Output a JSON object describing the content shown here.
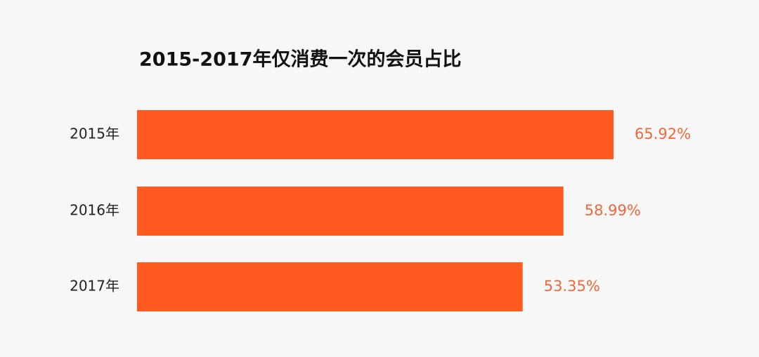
{
  "chart_data": {
    "type": "bar",
    "orientation": "horizontal",
    "title": "2015-2017年仅消费一次的会员占比",
    "categories": [
      "2015年",
      "2016年",
      "2017年"
    ],
    "values": [
      65.92,
      58.99,
      53.35
    ],
    "value_labels": [
      "65.92%",
      "58.99%",
      "53.35%"
    ],
    "color": "#ff5a1f"
  }
}
